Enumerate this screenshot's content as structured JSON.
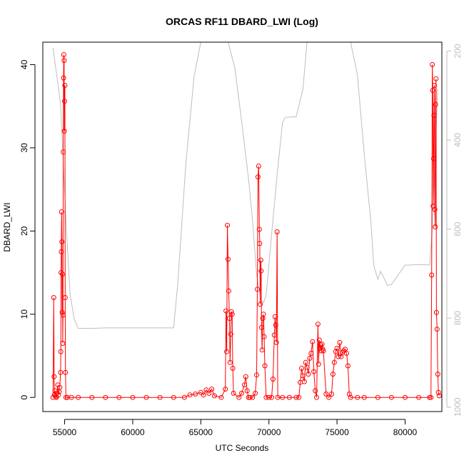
{
  "chart_data": {
    "type": "line",
    "title": "ORCAS RF11 DBARD_LWI (Log)",
    "xlabel": "UTC Seconds",
    "ylabel": "DBARD_LWI",
    "xlim": [
      53400,
      82700
    ],
    "ylim": [
      -1.7,
      42.7
    ],
    "y2lim": [
      1010,
      180
    ],
    "xticks": [
      "55000",
      "60000",
      "65000",
      "70000",
      "75000",
      "80000"
    ],
    "yticks": [
      "0",
      "10",
      "20",
      "30",
      "40"
    ],
    "y2ticks": [
      "200",
      "400",
      "600",
      "800",
      "1000"
    ],
    "grid": false,
    "colors": {
      "series": "#ff0000",
      "secondary": "#bebebe",
      "axis": "#000000"
    },
    "series": [
      {
        "role": "primary",
        "x": [
          54150,
          54200,
          54230,
          54260,
          54300,
          54350,
          54400,
          54450,
          54500,
          54550,
          54600,
          54650,
          54700,
          54720,
          54740,
          54760,
          54780,
          54800,
          54820,
          54840,
          54860,
          54880,
          54900,
          54920,
          54940,
          54960,
          54980,
          55000,
          55020,
          55040,
          55060,
          55100,
          55200,
          55500,
          56000,
          57000,
          58000,
          59000,
          60000,
          61000,
          62000,
          63000,
          63800,
          64200,
          64600,
          65000,
          65200,
          65400,
          65600,
          65800,
          66000,
          66500,
          66800,
          66850,
          66900,
          66950,
          67000,
          67050,
          67100,
          67150,
          67200,
          67250,
          67300,
          67350,
          67400,
          67800,
          68000,
          68200,
          68300,
          68400,
          68500,
          68600,
          68800,
          69000,
          69100,
          69150,
          69200,
          69250,
          69300,
          69330,
          69360,
          69400,
          69430,
          69460,
          69500,
          69550,
          69600,
          69650,
          69700,
          69800,
          70000,
          70200,
          70300,
          70400,
          70450,
          70500,
          70550,
          70600,
          70650,
          71000,
          71500,
          72000,
          72200,
          72300,
          72400,
          72500,
          72600,
          72700,
          72800,
          72900,
          73000,
          73100,
          73200,
          73300,
          73400,
          73500,
          73600,
          73650,
          73700,
          73750,
          73800,
          73850,
          73900,
          73950,
          74000,
          74200,
          74400,
          74600,
          74700,
          74800,
          74900,
          75000,
          75100,
          75200,
          75300,
          75400,
          75500,
          75600,
          75700,
          75800,
          75900,
          76000,
          76500,
          77000,
          78000,
          79000,
          80000,
          81000,
          81800,
          81900,
          81950,
          82000,
          82030,
          82060,
          82090,
          82120,
          82150,
          82180,
          82210,
          82240,
          82270,
          82300,
          82350,
          82400,
          82450,
          82500
        ],
        "y": [
          0,
          12,
          2.5,
          0.3,
          0.8,
          0.1,
          0,
          0.5,
          1.5,
          0.3,
          0.7,
          1.2,
          3,
          5.5,
          15,
          17.5,
          22.3,
          18.7,
          10.2,
          14.8,
          6.5,
          9.9,
          29.5,
          38.4,
          41.2,
          40.5,
          32,
          35.6,
          37.5,
          12,
          3,
          0,
          0,
          0,
          0,
          0,
          0,
          0,
          0,
          0,
          0,
          0,
          0,
          0.3,
          0.4,
          0.6,
          0.3,
          0.9,
          0.5,
          1,
          0.2,
          0,
          1,
          10.4,
          5.5,
          20.7,
          16.6,
          12.8,
          9.5,
          4.2,
          7.6,
          10.3,
          10,
          3.5,
          0.5,
          0,
          0.5,
          1.5,
          2.5,
          0.8,
          0,
          0,
          0,
          0.5,
          2.7,
          13,
          26.5,
          27.8,
          20.2,
          18.5,
          11.2,
          16.5,
          15.2,
          8.4,
          5.7,
          9.5,
          10,
          7.3,
          3.8,
          0,
          0,
          0,
          2.2,
          7.5,
          9.7,
          8.7,
          6.6,
          19.9,
          0,
          0,
          0,
          0,
          0,
          1.8,
          3.5,
          2.6,
          1.9,
          4.2,
          3.6,
          2.8,
          4.7,
          5.3,
          6.7,
          3.1,
          0.8,
          0,
          8.8,
          4,
          6.9,
          5.9,
          6.3,
          5.6,
          6.4,
          5.8,
          5.6,
          0.4,
          0,
          0.4,
          2.8,
          4.2,
          5.5,
          5.9,
          4.9,
          6.6,
          4.9,
          5.4,
          5.6,
          5.8,
          5.3,
          3.8,
          0.4,
          0,
          0,
          0,
          0,
          0,
          0,
          0,
          0,
          0,
          14.7,
          40,
          36.9,
          23,
          28.7,
          33.9,
          37.5,
          22.6,
          20.5,
          35.2,
          38.3,
          10.2,
          8.2,
          2.8,
          0.6,
          0.2
        ]
      },
      {
        "role": "secondary",
        "x": [
          54150,
          54700,
          55100,
          55400,
          55700,
          56000,
          57000,
          58000,
          59000,
          60000,
          61000,
          62000,
          63000,
          63300,
          63900,
          64500,
          65000,
          65500,
          65800,
          66500,
          67000,
          67500,
          68000,
          68500,
          68800,
          69100,
          69400,
          69600,
          69800,
          70200,
          70600,
          71000,
          71200,
          71700,
          72000,
          72500,
          72800,
          73000,
          73300,
          73500,
          73600,
          73800,
          74000,
          74200,
          74500,
          75000,
          75500,
          76000,
          76500,
          77000,
          77500,
          77700,
          78000,
          78200,
          78500,
          78700,
          79000,
          80000,
          81000,
          81500,
          81800,
          82000,
          82200,
          82400
        ],
        "y": [
          193,
          318,
          583,
          746,
          802,
          823,
          823,
          822,
          822,
          822,
          822,
          822,
          822,
          725,
          454,
          258,
          140,
          140,
          140,
          140,
          140,
          238,
          358,
          486,
          581,
          703,
          757,
          766,
          747,
          612,
          478,
          360,
          349,
          348,
          348,
          285,
          145,
          145,
          145,
          145,
          145,
          145,
          160,
          140,
          140,
          140,
          140,
          140,
          254,
          432,
          588,
          682,
          713,
          695,
          713,
          727,
          724,
          681,
          680,
          680,
          681,
          602,
          434,
          285
        ]
      }
    ]
  }
}
